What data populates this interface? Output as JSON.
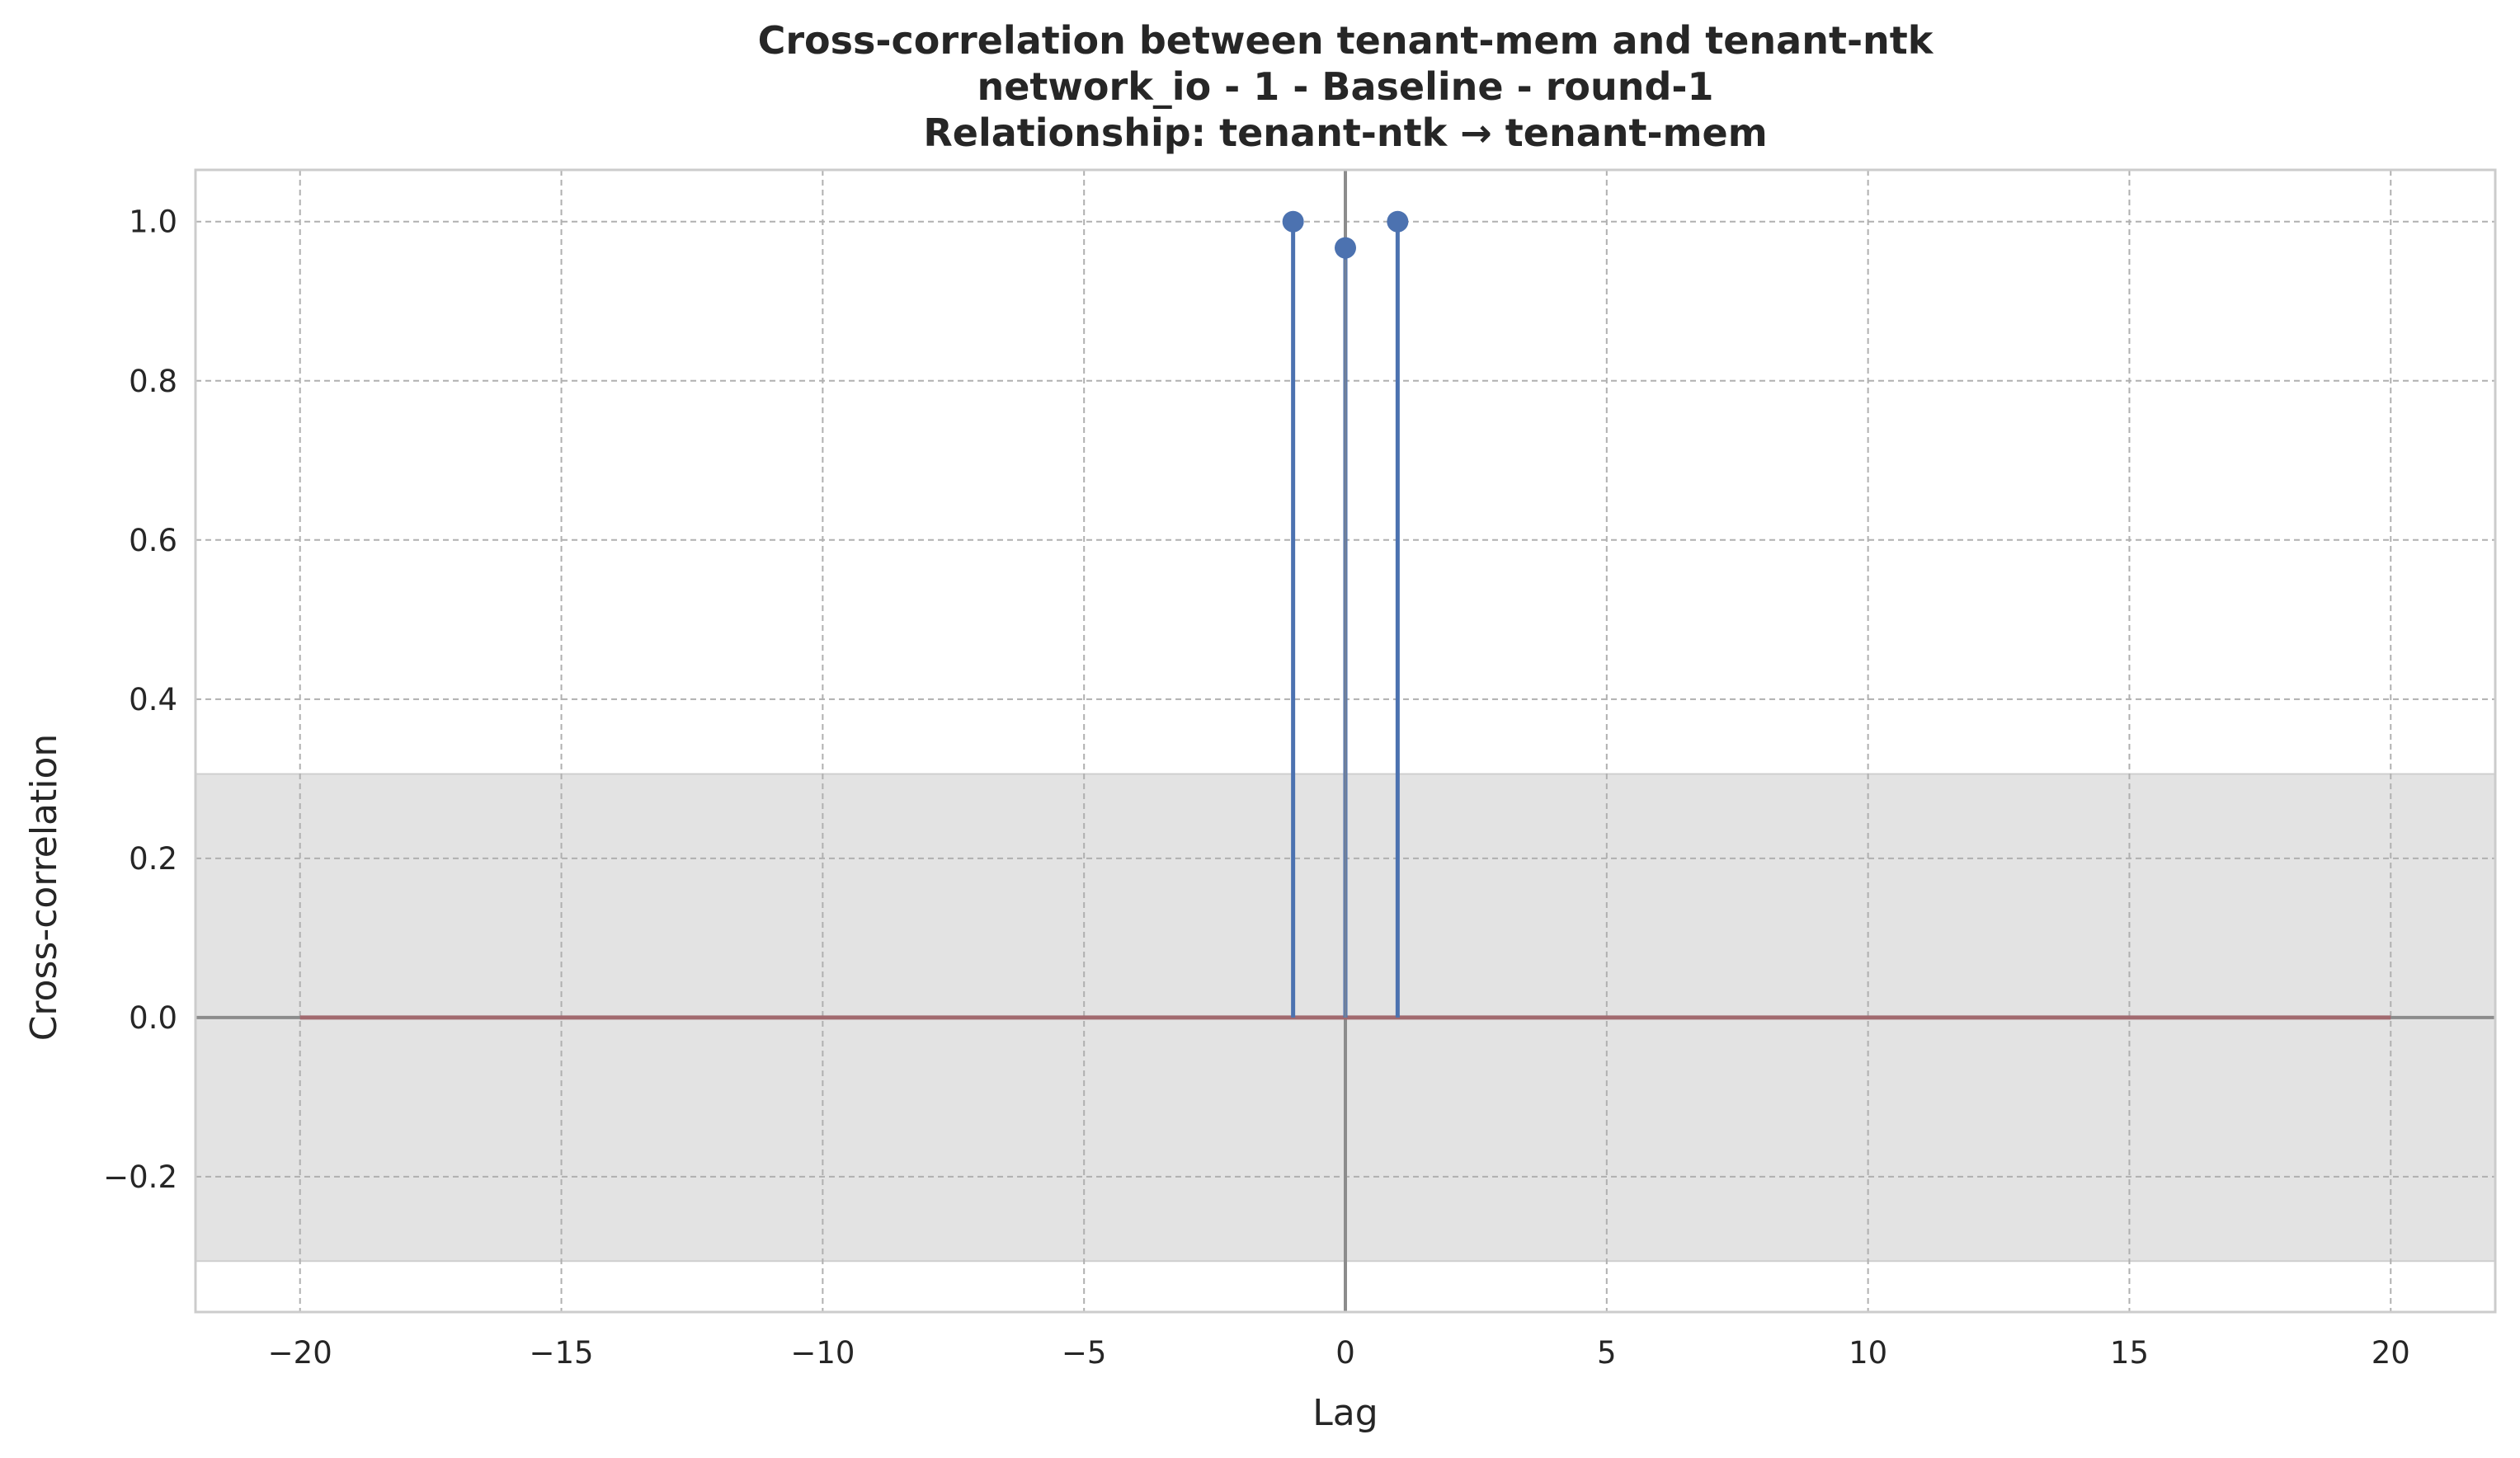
{
  "chart_data": {
    "type": "stem",
    "title_lines": [
      "Cross-correlation between tenant-mem and tenant-ntk",
      "network_io - 1 - Baseline - round-1",
      "Relationship: tenant-ntk → tenant-mem"
    ],
    "xlabel": "Lag",
    "ylabel": "Cross-correlation",
    "xlim": [
      -22,
      22
    ],
    "ylim": [
      -0.37,
      1.065
    ],
    "xticks": [
      -20,
      -15,
      -10,
      -5,
      0,
      5,
      10,
      15,
      20
    ],
    "xtick_labels": [
      "−20",
      "−15",
      "−10",
      "−5",
      "0",
      "5",
      "10",
      "15",
      "20"
    ],
    "yticks": [
      -0.2,
      0.0,
      0.2,
      0.4,
      0.6,
      0.8,
      1.0
    ],
    "ytick_labels": [
      "−0.2",
      "0.0",
      "0.2",
      "0.4",
      "0.6",
      "0.8",
      "1.0"
    ],
    "grid": true,
    "confidence_band": [
      -0.306,
      0.306
    ],
    "baseline": {
      "from": -20,
      "to": 20,
      "y": 0
    },
    "series": [
      {
        "x": [
          -1,
          0,
          1
        ],
        "values": [
          1.0,
          0.967,
          1.0
        ]
      }
    ],
    "colors": {
      "stem": "#4c72b0",
      "baseline": "#a16a6f",
      "band": "#e3e3e3",
      "grid": "#b0b0b0",
      "zero_line": "#8c8c8c",
      "spine": "#cccccc"
    }
  }
}
